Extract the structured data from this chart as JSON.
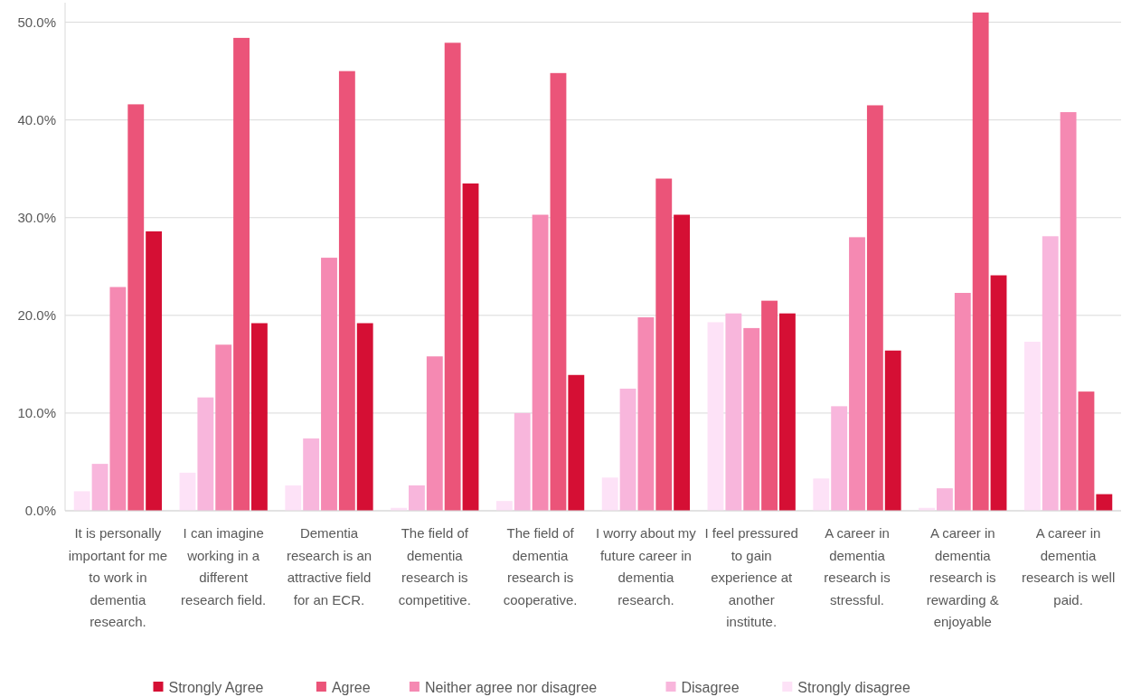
{
  "chart_data": {
    "type": "bar",
    "categories": [
      "It is personally important for me to work in dementia research.",
      "I can imagine working in a different research field.",
      "Dementia research is an attractive field for an ECR.",
      "The field of dementia research is competitive.",
      "The field of dementia research is cooperative.",
      "I worry about my future career in dementia research.",
      "I feel pressured to gain experience at another institute.",
      "A career in dementia research is stressful.",
      "A career in dementia research is rewarding & enjoyable",
      "A career in dementia research is well paid."
    ],
    "series": [
      {
        "name": "Strongly Agree",
        "color": "#d50f34",
        "values": [
          28.6,
          19.2,
          19.2,
          33.5,
          13.9,
          30.3,
          20.2,
          16.4,
          24.1,
          1.7
        ]
      },
      {
        "name": "Agree",
        "color": "#eb5479",
        "values": [
          41.6,
          48.4,
          45.0,
          47.9,
          44.8,
          34.0,
          21.5,
          41.5,
          51.0,
          12.2
        ]
      },
      {
        "name": "Neither agree nor disagree",
        "color": "#f589b2",
        "values": [
          22.9,
          17.0,
          25.9,
          15.8,
          30.3,
          19.8,
          18.7,
          28.0,
          22.3,
          40.8
        ]
      },
      {
        "name": "Disagree",
        "color": "#f8b6dc",
        "values": [
          4.8,
          11.6,
          7.4,
          2.6,
          10.0,
          12.5,
          20.2,
          10.7,
          2.3,
          28.1
        ]
      },
      {
        "name": "Strongly disagree",
        "color": "#fde2f7",
        "values": [
          2.0,
          3.9,
          2.6,
          0.3,
          1.0,
          3.4,
          19.3,
          3.3,
          0.3,
          17.3
        ]
      }
    ],
    "ylim": [
      0,
      52
    ],
    "yticks": [
      {
        "value": 0,
        "label": "0.0%"
      },
      {
        "value": 10,
        "label": "10.0%"
      },
      {
        "value": 20,
        "label": "20.0%"
      },
      {
        "value": 30,
        "label": "30.0%"
      },
      {
        "value": 40,
        "label": "40.0%"
      },
      {
        "value": 50,
        "label": "50.0%"
      }
    ],
    "grid": "y",
    "legend": "bottom"
  }
}
